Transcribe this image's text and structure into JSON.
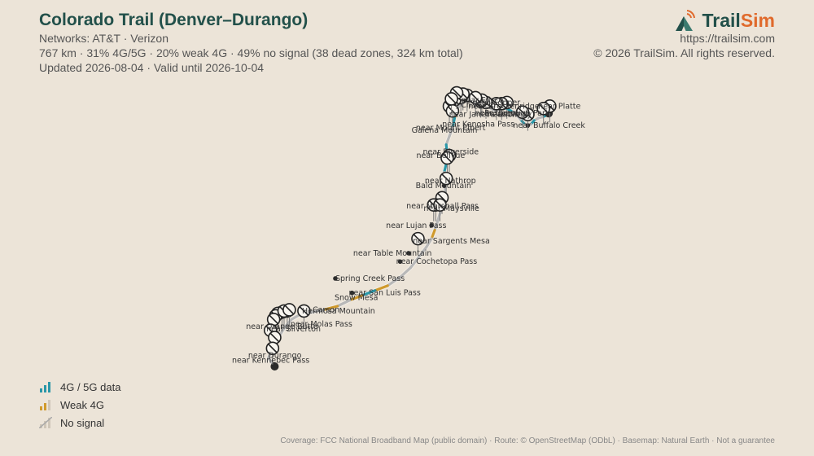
{
  "header": {
    "title": "Colorado Trail (Denver–Durango)",
    "networks": "Networks: AT&T · Verizon",
    "stats": "767 km · 31% 4G/5G · 20% weak 4G · 49% no signal (38 dead zones, 324 km total)",
    "updated": "Updated 2026-08-04 · Valid until 2026-10-04"
  },
  "brand": {
    "name_part1": "Trail",
    "name_part2": "Sim",
    "url": "https://trailsim.com",
    "copyright": "© 2026 TrailSim. All rights reserved."
  },
  "legend": [
    {
      "label": "4G / 5G data",
      "icon": "signal-bars-strong-icon",
      "color": "#2a97a8"
    },
    {
      "label": "Weak 4G",
      "icon": "signal-bars-weak-icon",
      "color": "#d09a2c"
    },
    {
      "label": "No signal",
      "icon": "no-signal-icon",
      "color": "#b8b8b8"
    }
  ],
  "footer": "Coverage: FCC National Broadband Map (public domain) · Route: © OpenStreetMap (ODbL) · Basemap: Natural Earth · Not a guarantee",
  "map": {
    "colors": {
      "strong": "#2a97a8",
      "weak": "#d09a2c",
      "none": "#b8b8b8"
    },
    "route": [
      {
        "lon": -105.1,
        "lat": 39.49,
        "sig": "none"
      },
      {
        "lon": -105.13,
        "lat": 39.47,
        "sig": "none"
      },
      {
        "lon": -105.16,
        "lat": 39.46,
        "sig": "strong"
      },
      {
        "lon": -105.2,
        "lat": 39.45,
        "sig": "none"
      },
      {
        "lon": -105.24,
        "lat": 39.43,
        "sig": "none"
      },
      {
        "lon": -105.27,
        "lat": 39.4,
        "sig": "strong"
      },
      {
        "lon": -105.3,
        "lat": 39.39,
        "sig": "none"
      },
      {
        "lon": -105.34,
        "lat": 39.41,
        "sig": "none"
      },
      {
        "lon": -105.37,
        "lat": 39.44,
        "sig": "strong"
      },
      {
        "lon": -105.4,
        "lat": 39.47,
        "sig": "none"
      },
      {
        "lon": -105.43,
        "lat": 39.5,
        "sig": "none"
      },
      {
        "lon": -105.46,
        "lat": 39.51,
        "sig": "none"
      },
      {
        "lon": -105.5,
        "lat": 39.53,
        "sig": "strong"
      },
      {
        "lon": -105.54,
        "lat": 39.54,
        "sig": "strong"
      },
      {
        "lon": -105.57,
        "lat": 39.52,
        "sig": "none"
      },
      {
        "lon": -105.61,
        "lat": 39.51,
        "sig": "none"
      },
      {
        "lon": -105.65,
        "lat": 39.53,
        "sig": "none"
      },
      {
        "lon": -105.69,
        "lat": 39.55,
        "sig": "none"
      },
      {
        "lon": -105.74,
        "lat": 39.56,
        "sig": "strong"
      },
      {
        "lon": -105.78,
        "lat": 39.56,
        "sig": "strong"
      },
      {
        "lon": -105.81,
        "lat": 39.58,
        "sig": "strong"
      },
      {
        "lon": -105.86,
        "lat": 39.6,
        "sig": "none"
      },
      {
        "lon": -105.9,
        "lat": 39.59,
        "sig": "none"
      },
      {
        "lon": -105.94,
        "lat": 39.57,
        "sig": "none"
      },
      {
        "lon": -105.98,
        "lat": 39.52,
        "sig": "none"
      },
      {
        "lon": -106.0,
        "lat": 39.45,
        "sig": "weak"
      },
      {
        "lon": -106.02,
        "lat": 39.37,
        "sig": "strong"
      },
      {
        "lon": -106.05,
        "lat": 39.3,
        "sig": "none"
      },
      {
        "lon": -106.08,
        "lat": 39.23,
        "sig": "none"
      },
      {
        "lon": -106.07,
        "lat": 39.15,
        "sig": "strong"
      },
      {
        "lon": -106.08,
        "lat": 39.07,
        "sig": "none"
      },
      {
        "lon": -106.1,
        "lat": 39.0,
        "sig": "strong"
      },
      {
        "lon": -106.09,
        "lat": 38.92,
        "sig": "none"
      },
      {
        "lon": -106.09,
        "lat": 38.84,
        "sig": "none"
      },
      {
        "lon": -106.11,
        "lat": 38.76,
        "sig": "none"
      },
      {
        "lon": -106.13,
        "lat": 38.69,
        "sig": "strong"
      },
      {
        "lon": -106.16,
        "lat": 38.6,
        "sig": "none"
      },
      {
        "lon": -106.19,
        "lat": 38.52,
        "sig": "none"
      },
      {
        "lon": -106.22,
        "lat": 38.45,
        "sig": "weak"
      },
      {
        "lon": -106.27,
        "lat": 38.38,
        "sig": "none"
      },
      {
        "lon": -106.34,
        "lat": 38.3,
        "sig": "none"
      },
      {
        "lon": -106.42,
        "lat": 38.21,
        "sig": "none"
      },
      {
        "lon": -106.52,
        "lat": 38.13,
        "sig": "none"
      },
      {
        "lon": -106.64,
        "lat": 38.06,
        "sig": "none"
      },
      {
        "lon": -106.76,
        "lat": 38.02,
        "sig": "weak"
      },
      {
        "lon": -106.88,
        "lat": 37.98,
        "sig": "strong"
      },
      {
        "lon": -107.0,
        "lat": 37.94,
        "sig": "weak"
      },
      {
        "lon": -107.12,
        "lat": 37.89,
        "sig": "none"
      },
      {
        "lon": -107.25,
        "lat": 37.86,
        "sig": "weak"
      },
      {
        "lon": -107.37,
        "lat": 37.84,
        "sig": "none"
      },
      {
        "lon": -107.48,
        "lat": 37.82,
        "sig": "none"
      },
      {
        "lon": -107.56,
        "lat": 37.78,
        "sig": "none"
      },
      {
        "lon": -107.62,
        "lat": 37.72,
        "sig": "none"
      },
      {
        "lon": -107.67,
        "lat": 37.65,
        "sig": "none"
      },
      {
        "lon": -107.73,
        "lat": 37.58,
        "sig": "none"
      },
      {
        "lon": -107.75,
        "lat": 37.52,
        "sig": "strong"
      },
      {
        "lon": -107.78,
        "lat": 37.46,
        "sig": "none"
      },
      {
        "lon": -107.72,
        "lat": 37.39,
        "sig": "none"
      }
    ],
    "dead_zones": [
      {
        "lon": -105.09,
        "lat": 39.55
      },
      {
        "lon": -105.15,
        "lat": 39.53
      },
      {
        "lon": -105.3,
        "lat": 39.48
      },
      {
        "lon": -105.35,
        "lat": 39.5
      },
      {
        "lon": -105.5,
        "lat": 39.58
      },
      {
        "lon": -105.55,
        "lat": 39.57
      },
      {
        "lon": -105.6,
        "lat": 39.57
      },
      {
        "lon": -105.7,
        "lat": 39.58
      },
      {
        "lon": -105.75,
        "lat": 39.59
      },
      {
        "lon": -105.88,
        "lat": 39.64
      },
      {
        "lon": -105.94,
        "lat": 39.62
      },
      {
        "lon": -106.0,
        "lat": 39.6
      },
      {
        "lon": -106.05,
        "lat": 39.55
      },
      {
        "lon": -106.02,
        "lat": 39.51
      },
      {
        "lon": -105.92,
        "lat": 39.65
      },
      {
        "lon": -106.05,
        "lat": 39.14
      },
      {
        "lon": -106.07,
        "lat": 39.12
      },
      {
        "lon": -106.08,
        "lat": 38.95
      },
      {
        "lon": -106.12,
        "lat": 38.79
      },
      {
        "lon": -106.18,
        "lat": 38.73
      },
      {
        "lon": -106.2,
        "lat": 38.73
      },
      {
        "lon": -106.14,
        "lat": 38.73
      },
      {
        "lon": -106.35,
        "lat": 38.45
      },
      {
        "lon": -107.44,
        "lat": 37.85
      },
      {
        "lon": -107.6,
        "lat": 37.85
      },
      {
        "lon": -107.65,
        "lat": 37.84
      },
      {
        "lon": -107.69,
        "lat": 37.83
      },
      {
        "lon": -107.71,
        "lat": 37.81
      },
      {
        "lon": -107.73,
        "lat": 37.78
      },
      {
        "lon": -107.63,
        "lat": 37.85
      },
      {
        "lon": -107.58,
        "lat": 37.86
      },
      {
        "lon": -107.76,
        "lat": 37.69
      },
      {
        "lon": -107.72,
        "lat": 37.63
      },
      {
        "lon": -107.74,
        "lat": 37.54
      },
      {
        "lon": -105.74,
        "lat": 39.6
      },
      {
        "lon": -105.8,
        "lat": 39.62
      },
      {
        "lon": -105.98,
        "lat": 39.66
      },
      {
        "lon": -106.03,
        "lat": 39.61
      }
    ],
    "places": [
      {
        "name": "near Frisco",
        "lon": -105.96,
        "lat": 39.6,
        "anchor": "start",
        "dx": 3,
        "dy": 0,
        "dot": false
      },
      {
        "name": "near Breckenridge",
        "lon": -105.9,
        "lat": 39.55,
        "anchor": "start",
        "dx": 4,
        "dy": 0,
        "dot": false
      },
      {
        "name": "near Janet's Cabin",
        "lon": -105.99,
        "lat": 39.48,
        "anchor": "start",
        "dx": -8,
        "dy": 0,
        "dot": false
      },
      {
        "name": "near Uneva",
        "lon": -105.82,
        "lat": 39.49,
        "anchor": "start",
        "dx": 2,
        "dy": 0,
        "dot": false
      },
      {
        "name": "near Windy",
        "lon": -105.7,
        "lat": 39.48,
        "anchor": "start",
        "dx": 2,
        "dy": 0,
        "dot": false
      },
      {
        "name": "near Copper",
        "lon": -105.83,
        "lat": 39.58,
        "anchor": "start",
        "dx": 0,
        "dy": 0,
        "dot": false
      },
      {
        "name": "Chatfield",
        "lon": -105.97,
        "lat": 39.56,
        "anchor": "start",
        "dx": 4,
        "dy": 0,
        "dot": false
      },
      {
        "name": "near Platte",
        "lon": -105.2,
        "lat": 39.55,
        "anchor": "start",
        "dx": 0,
        "dy": 0,
        "dot": false
      },
      {
        "name": "Roxborough Park",
        "lon": -105.09,
        "lat": 39.49,
        "anchor": "end",
        "dx": 0,
        "dy": 0,
        "dot": true
      },
      {
        "name": "near Kenosha Pass",
        "lon": -105.62,
        "lat": 39.4,
        "anchor": "start",
        "dx": -64,
        "dy": 0,
        "dot": false
      },
      {
        "name": "near Buffalo Creek",
        "lon": -105.3,
        "lat": 39.39,
        "anchor": "start",
        "dx": -18,
        "dy": 0,
        "dot": true
      },
      {
        "name": "near Mount Elbert",
        "lon": -106.09,
        "lat": 39.37,
        "anchor": "start",
        "dx": -36,
        "dy": 0,
        "dot": false
      },
      {
        "name": "Galena Mountain",
        "lon": -106.1,
        "lat": 39.35,
        "anchor": "start",
        "dx": -40,
        "dy": 0,
        "dot": false
      },
      {
        "name": "near Riverside",
        "lon": -106.07,
        "lat": 39.17,
        "anchor": "start",
        "dx": -30,
        "dy": 0,
        "dot": false
      },
      {
        "name": "near Bellvue",
        "lon": -106.07,
        "lat": 39.14,
        "anchor": "start",
        "dx": -38,
        "dy": 0,
        "dot": true
      },
      {
        "name": "near Nathrop",
        "lon": -106.09,
        "lat": 38.93,
        "anchor": "start",
        "dx": -25,
        "dy": 0,
        "dot": false
      },
      {
        "name": "Bald Mountain",
        "lon": -106.1,
        "lat": 38.89,
        "anchor": "start",
        "dx": -35,
        "dy": 0,
        "dot": true
      },
      {
        "name": "near Marshall Pass",
        "lon": -106.15,
        "lat": 38.72,
        "anchor": "start",
        "dx": -40,
        "dy": 0,
        "dot": false
      },
      {
        "name": "near Maysville",
        "lon": -106.18,
        "lat": 38.7,
        "anchor": "start",
        "dx": -15,
        "dy": 0,
        "dot": true
      },
      {
        "name": "near Lujan Pass",
        "lon": -106.22,
        "lat": 38.56,
        "anchor": "start",
        "dx": -56,
        "dy": 0,
        "dot": true
      },
      {
        "name": "near Sargents Mesa",
        "lon": -106.36,
        "lat": 38.43,
        "anchor": "start",
        "dx": -5,
        "dy": 0,
        "dot": true
      },
      {
        "name": "near Table Mountain",
        "lon": -106.44,
        "lat": 38.33,
        "anchor": "start",
        "dx": -68,
        "dy": 0,
        "dot": true
      },
      {
        "name": "near Cochetopa Pass",
        "lon": -106.52,
        "lat": 38.26,
        "anchor": "start",
        "dx": -5,
        "dy": 0,
        "dot": true
      },
      {
        "name": "Spring Creek Pass",
        "lon": -107.14,
        "lat": 38.12,
        "anchor": "start",
        "dx": 0,
        "dy": 0,
        "dot": true
      },
      {
        "name": "near San Luis Pass",
        "lon": -106.98,
        "lat": 38.0,
        "anchor": "start",
        "dx": -4,
        "dy": 0,
        "dot": true
      },
      {
        "name": "Snow Mesa",
        "lon": -107.21,
        "lat": 37.96,
        "anchor": "start",
        "dx": 8,
        "dy": 0,
        "dot": false
      },
      {
        "name": "Carson",
        "lon": -107.42,
        "lat": 37.86,
        "anchor": "start",
        "dx": 8,
        "dy": 0,
        "dot": true
      },
      {
        "name": "Hermosa Mountain",
        "lon": -107.49,
        "lat": 37.85,
        "anchor": "start",
        "dx": 4,
        "dy": 0,
        "dot": false
      },
      {
        "name": "near Molas Pass",
        "lon": -107.57,
        "lat": 37.74,
        "anchor": "start",
        "dx": 0,
        "dy": 0,
        "dot": false
      },
      {
        "name": "near Orange Butte",
        "lon": -107.76,
        "lat": 37.72,
        "anchor": "start",
        "dx": -30,
        "dy": 0,
        "dot": false
      },
      {
        "name": "near Silverton",
        "lon": -107.8,
        "lat": 37.7,
        "anchor": "start",
        "dx": 0,
        "dy": 0,
        "dot": false
      },
      {
        "name": "near Durango",
        "lon": -107.74,
        "lat": 37.48,
        "anchor": "start",
        "dx": -30,
        "dy": 0,
        "dot": false
      },
      {
        "name": "near Kennebec Pass",
        "lon": -107.7,
        "lat": 37.44,
        "anchor": "start",
        "dx": -55,
        "dy": 0,
        "dot": false
      }
    ]
  }
}
